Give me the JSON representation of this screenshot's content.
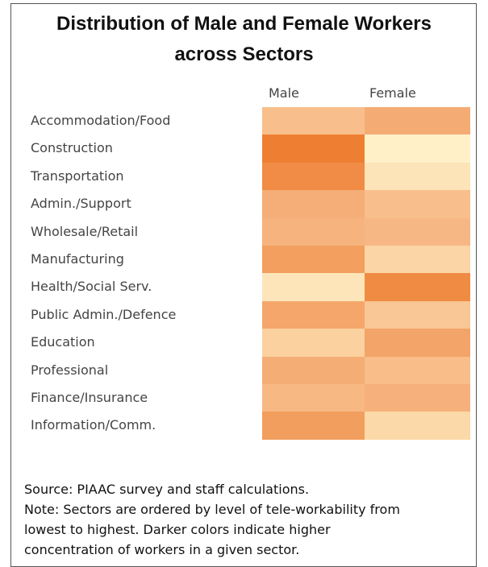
{
  "chart_data": {
    "type": "heatmap",
    "title": [
      "Distribution of Male and Female Workers",
      "across Sectors"
    ],
    "columns": [
      "Male",
      "Female"
    ],
    "categories": [
      "Accommodation/Food",
      "Construction",
      "Transportation",
      "Admin./Support",
      "Wholesale/Retail",
      "Manufacturing",
      "Health/Social Serv.",
      "Public Admin./Defence",
      "Education",
      "Professional",
      "Finance/Insurance",
      "Information/Comm."
    ],
    "colors": [
      [
        "#f8bf8c",
        "#f5ac74"
      ],
      [
        "#ee7f32",
        "#fff0c8"
      ],
      [
        "#f08c45",
        "#fde3b8"
      ],
      [
        "#f5ae78",
        "#f8be8b"
      ],
      [
        "#f6b37d",
        "#f7b784"
      ],
      [
        "#f29f5f",
        "#fbd5a5"
      ],
      [
        "#fde5b9",
        "#f08b44"
      ],
      [
        "#f4a66b",
        "#f9c695"
      ],
      [
        "#fbd19f",
        "#f3a468"
      ],
      [
        "#f5ad76",
        "#f8bd88"
      ],
      [
        "#f7b884",
        "#f6b07b"
      ],
      [
        "#f29e5e",
        "#fcd9a8"
      ]
    ],
    "notes": [
      "Source: PIAAC survey and staff calculations.",
      "Note: Sectors are ordered by level of tele-workability from",
      "lowest to highest. Darker colors indicate higher",
      "concentration of workers in a given sector."
    ]
  }
}
